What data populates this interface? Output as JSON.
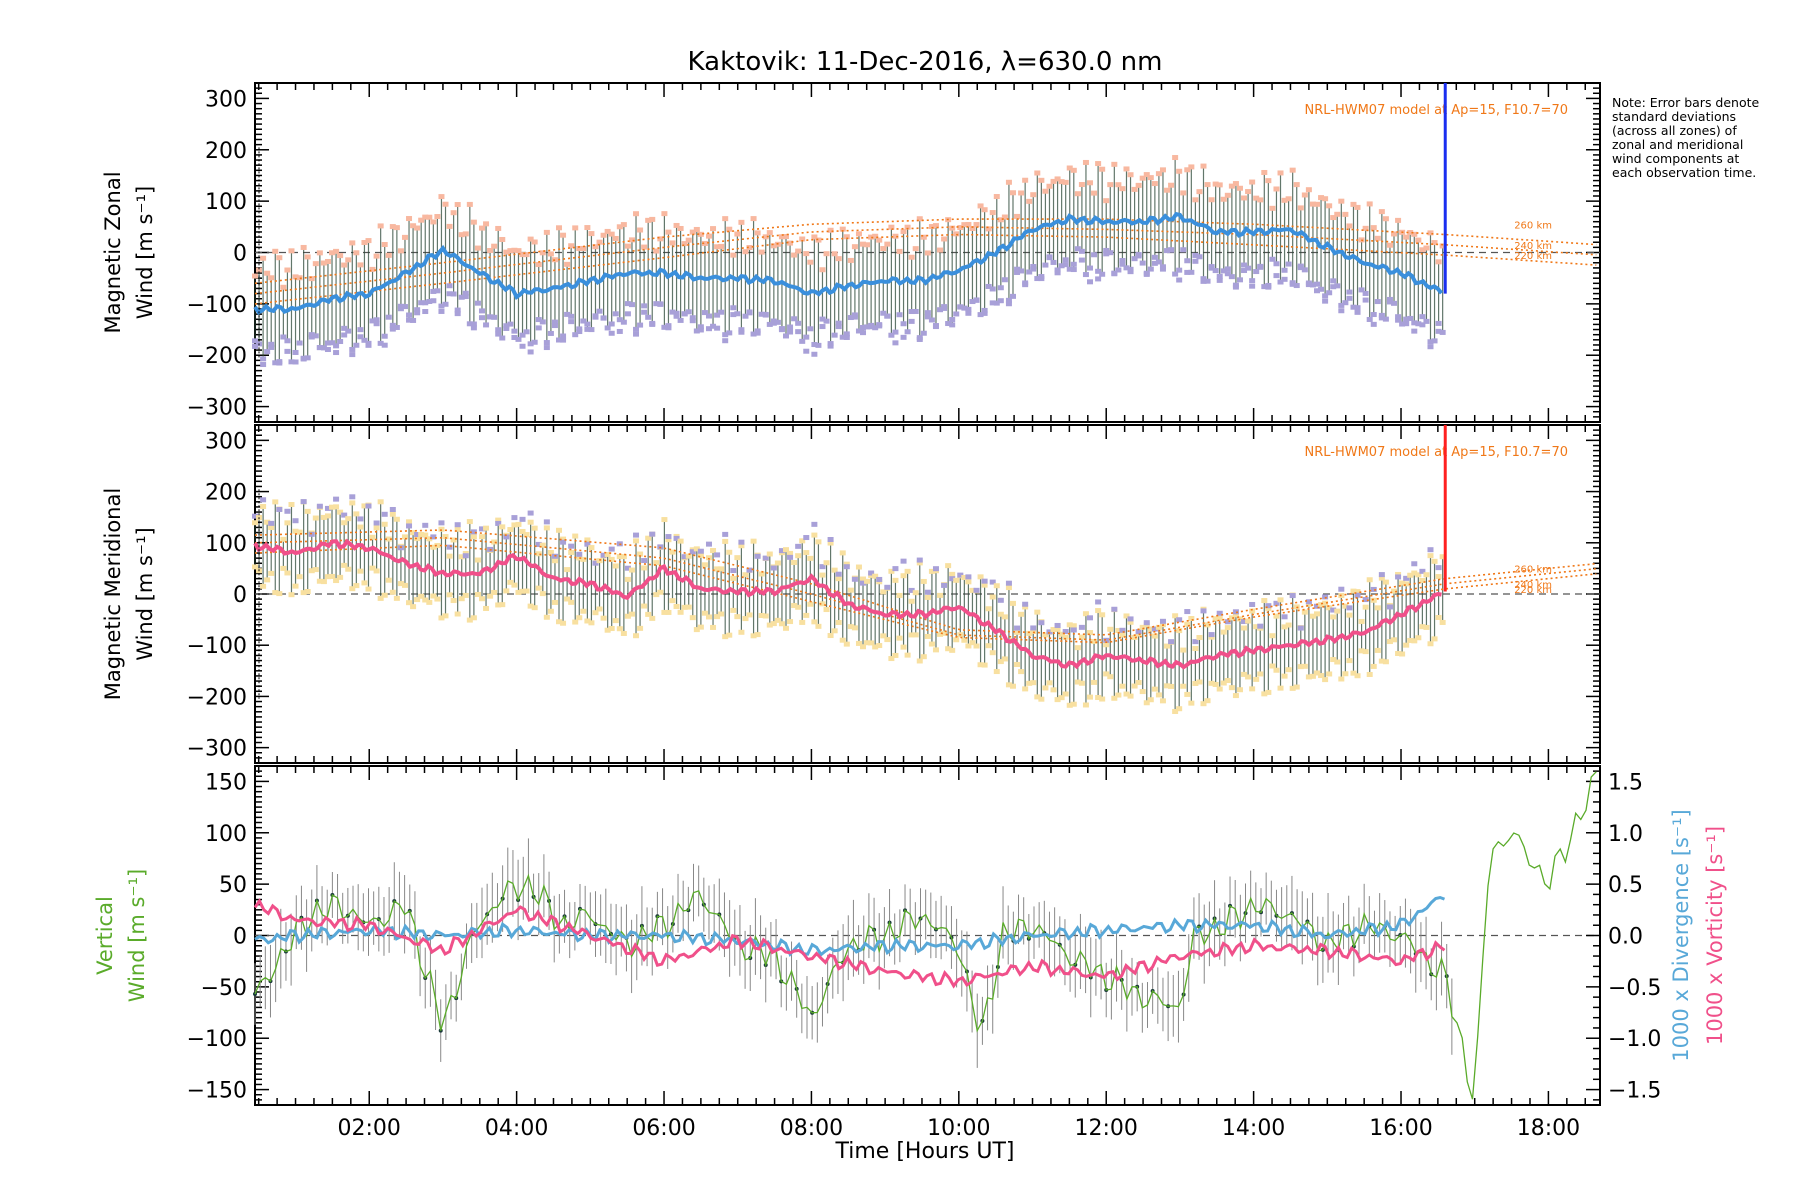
{
  "chart_data": {
    "title": "Kaktovik: 11-Dec-2016, λ=630.0 nm",
    "xlabel": "Time [Hours UT]",
    "x_ticks": [
      "02:00",
      "04:00",
      "06:00",
      "08:00",
      "10:00",
      "12:00",
      "14:00",
      "16:00",
      "18:00"
    ],
    "xlim": [
      0.45,
      18.7
    ],
    "note": "Note: Error bars denote standard deviations (across all zones) of zonal and meridional wind components at each observation time.",
    "colors": {
      "zonal": "#3a8fdc",
      "zonal_end": "#1a2ff0",
      "meridional": "#f0508a",
      "meridional_end": "#ff2020",
      "model": "#f07818",
      "vertical": "#5aab2a",
      "divergence": "#58a8d8",
      "vorticity": "#f0508a",
      "errbar": "#2e4a3a",
      "scatter": "#a8a0d8",
      "spread_zonal": "#f8b8a0",
      "spread_merid": "#f8e0a0"
    },
    "panels": [
      {
        "type": "line",
        "name": "zonal",
        "ylabel_line1": "Magnetic Zonal",
        "ylabel_line2": "Wind [m s⁻¹]",
        "ylim": [
          -330,
          330
        ],
        "y_ticks": [
          -300,
          -200,
          -100,
          0,
          100,
          200,
          300
        ],
        "model_label": "NRL-HWM07 model at Ap=15, F10.7=70",
        "model_heights": [
          "260 km",
          "240 km",
          "220 km"
        ],
        "mean_wind": {
          "x": [
            0.45,
            1.0,
            1.5,
            2.0,
            2.5,
            3.0,
            3.5,
            4.0,
            4.5,
            5.0,
            5.5,
            6.0,
            6.5,
            7.0,
            7.5,
            8.0,
            8.5,
            9.0,
            9.5,
            10.0,
            10.5,
            11.0,
            11.5,
            12.0,
            12.5,
            13.0,
            13.5,
            14.0,
            14.5,
            15.0,
            15.5,
            16.0,
            16.6
          ],
          "y": [
            -110,
            -110,
            -90,
            -80,
            -40,
            5,
            -40,
            -80,
            -70,
            -55,
            -40,
            -40,
            -50,
            -50,
            -55,
            -80,
            -65,
            -55,
            -55,
            -35,
            0,
            45,
            65,
            60,
            60,
            70,
            40,
            40,
            45,
            10,
            -20,
            -40,
            -80
          ]
        },
        "model": [
          {
            "height": "260 km",
            "x": [
              0.45,
              3,
              6,
              8,
              10,
              12,
              14,
              16.6,
              18.7
            ],
            "y": [
              -60,
              -20,
              30,
              55,
              65,
              65,
              55,
              35,
              15
            ]
          },
          {
            "height": "240 km",
            "x": [
              0.45,
              3,
              6,
              8,
              10,
              12,
              14,
              16.6,
              18.7
            ],
            "y": [
              -80,
              -40,
              10,
              40,
              50,
              45,
              35,
              15,
              -5
            ]
          },
          {
            "height": "220 km",
            "x": [
              0.45,
              3,
              6,
              8,
              10,
              12,
              14,
              16.6,
              18.7
            ],
            "y": [
              -100,
              -60,
              -10,
              25,
              35,
              30,
              15,
              -5,
              -25
            ]
          }
        ],
        "error_bar_sd": 80
      },
      {
        "type": "line",
        "name": "meridional",
        "ylabel_line1": "Magnetic Meridional",
        "ylabel_line2": "Wind [m s⁻¹]",
        "ylim": [
          -330,
          330
        ],
        "y_ticks": [
          -300,
          -200,
          -100,
          0,
          100,
          200,
          300
        ],
        "model_label": "NRL-HWM07 model at Ap=15, F10.7=70",
        "model_heights": [
          "260 km",
          "240 km",
          "220 km"
        ],
        "mean_wind": {
          "x": [
            0.45,
            1.0,
            1.5,
            2.0,
            2.5,
            3.0,
            3.5,
            4.0,
            4.5,
            5.0,
            5.5,
            6.0,
            6.5,
            7.0,
            7.5,
            8.0,
            8.5,
            9.0,
            9.5,
            10.0,
            10.5,
            11.0,
            11.5,
            12.0,
            12.5,
            13.0,
            13.5,
            14.0,
            14.5,
            15.0,
            15.5,
            16.0,
            16.6
          ],
          "y": [
            95,
            80,
            100,
            90,
            60,
            40,
            40,
            75,
            30,
            20,
            -5,
            50,
            10,
            5,
            5,
            30,
            -20,
            -40,
            -40,
            -25,
            -70,
            -120,
            -140,
            -120,
            -130,
            -140,
            -120,
            -110,
            -100,
            -90,
            -75,
            -40,
            5
          ]
        },
        "model": [
          {
            "height": "260 km",
            "x": [
              0.45,
              3,
              6,
              8,
              10,
              12,
              14,
              16.6,
              18.7
            ],
            "y": [
              115,
              125,
              90,
              20,
              -70,
              -80,
              -30,
              30,
              60
            ]
          },
          {
            "height": "240 km",
            "x": [
              0.45,
              3,
              6,
              8,
              10,
              12,
              14,
              16.6,
              18.7
            ],
            "y": [
              100,
              110,
              70,
              0,
              -80,
              -90,
              -40,
              20,
              50
            ]
          },
          {
            "height": "220 km",
            "x": [
              0.45,
              3,
              6,
              8,
              10,
              12,
              14,
              16.6,
              18.7
            ],
            "y": [
              80,
              95,
              55,
              -15,
              -85,
              -95,
              -45,
              10,
              40
            ]
          }
        ],
        "error_bar_sd": 60
      },
      {
        "type": "line",
        "name": "vertical",
        "ylabel_line1": "Vertical",
        "ylabel_line2": "Wind [m s⁻¹]",
        "ylim": [
          -165,
          165
        ],
        "y_ticks": [
          -150,
          -100,
          -50,
          0,
          50,
          100,
          150
        ],
        "right_axis": {
          "ylim": [
            -1.65,
            1.65
          ],
          "ticks": [
            "-1.5",
            "-1.0",
            "-0.5",
            "0.0",
            "0.5",
            "1.0",
            "1.5"
          ],
          "label_divergence": "1000 x Divergence [s⁻¹]",
          "label_vorticity": "1000 x Vorticity [s⁻¹]"
        },
        "vertical_wind": {
          "x": [
            0.45,
            0.8,
            1.2,
            1.6,
            2.0,
            2.5,
            3.0,
            3.4,
            3.8,
            4.2,
            4.6,
            5.0,
            5.5,
            6.0,
            6.5,
            7.0,
            7.5,
            8.0,
            8.5,
            9.0,
            9.5,
            10.0,
            10.3,
            10.6,
            11.0,
            11.5,
            12.0,
            12.5,
            13.0,
            13.2,
            13.6,
            14.0,
            14.5,
            15.0,
            15.5,
            16.0,
            16.6,
            17.0,
            17.2,
            17.5,
            18.0,
            18.7
          ],
          "y": [
            -60,
            -20,
            20,
            30,
            10,
            30,
            -90,
            0,
            40,
            50,
            10,
            20,
            -10,
            10,
            40,
            -10,
            -20,
            -80,
            -10,
            0,
            20,
            -10,
            -100,
            0,
            10,
            -20,
            -40,
            -60,
            -70,
            0,
            10,
            30,
            20,
            -10,
            10,
            0,
            -40,
            -160,
            80,
            100,
            50,
            160
          ]
        },
        "divergence": {
          "x": [
            0.45,
            1.0,
            2.0,
            3.0,
            4.0,
            5.0,
            6.0,
            7.0,
            8.0,
            9.0,
            10.0,
            11.0,
            12.0,
            13.0,
            14.0,
            15.0,
            16.0,
            16.6
          ],
          "y": [
            -0.05,
            0.0,
            0.05,
            0.0,
            0.05,
            0.0,
            0.0,
            -0.05,
            -0.15,
            -0.1,
            -0.1,
            0.0,
            0.05,
            0.1,
            0.1,
            0.0,
            0.1,
            0.4
          ]
        },
        "vorticity": {
          "x": [
            0.45,
            1.0,
            2.0,
            3.0,
            4.0,
            5.0,
            6.0,
            7.0,
            8.0,
            9.0,
            10.0,
            11.0,
            12.0,
            13.0,
            14.0,
            15.0,
            16.0,
            16.6
          ],
          "y": [
            0.3,
            0.15,
            0.1,
            -0.15,
            0.25,
            0.0,
            -0.25,
            -0.05,
            -0.2,
            -0.35,
            -0.45,
            -0.3,
            -0.4,
            -0.2,
            -0.1,
            -0.15,
            -0.25,
            -0.1
          ]
        }
      }
    ]
  }
}
